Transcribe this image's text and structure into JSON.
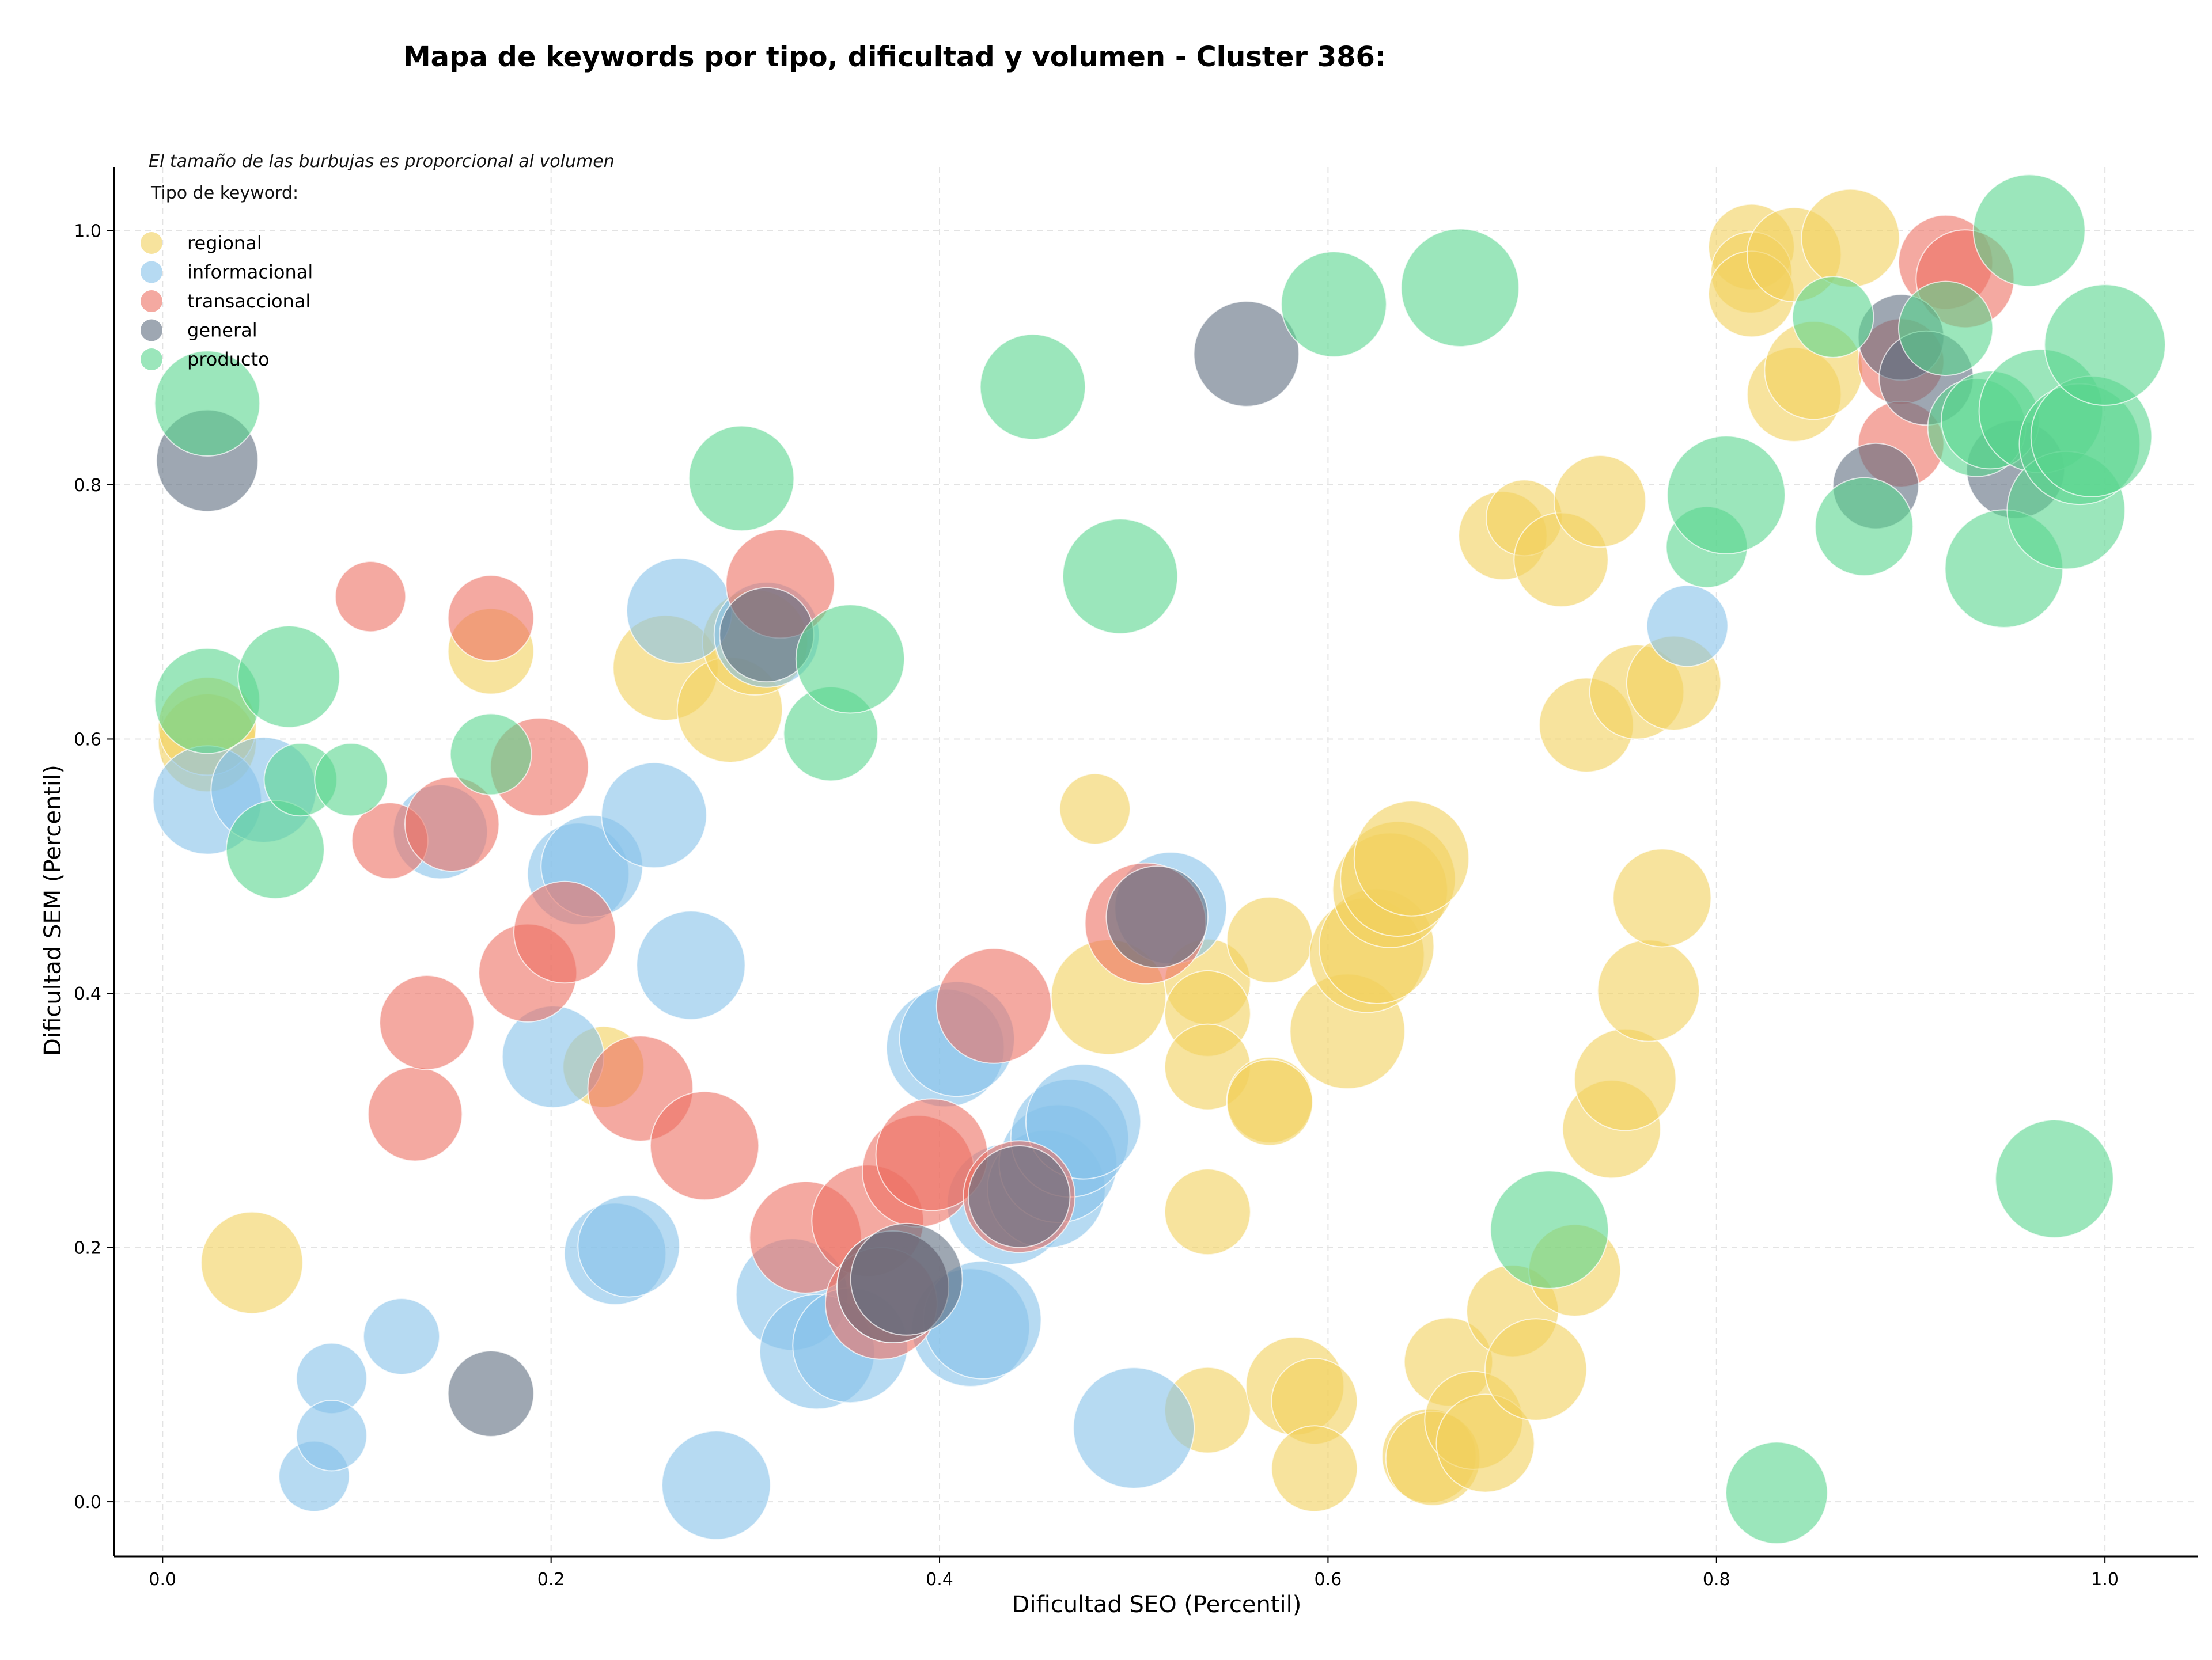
{
  "chart_data": {
    "type": "scatter",
    "title": "Mapa de keywords por tipo, dificultad y volumen - Cluster 386:",
    "subtitle": "El tamaño de las burbujas es proporcional al volumen",
    "xlabel": "Dificultad SEO (Percentil)",
    "ylabel": "Dificultad SEM (Percentil)",
    "xlim": [
      -0.025,
      1.048
    ],
    "ylim": [
      -0.043,
      1.05
    ],
    "xticks": [
      "0.0",
      "0.2",
      "0.4",
      "0.6",
      "0.8",
      "1.0"
    ],
    "yticks": [
      "0.0",
      "0.2",
      "0.4",
      "0.6",
      "0.8",
      "1.0"
    ],
    "grid": true,
    "legend": {
      "title": "Tipo de keyword:",
      "placement": "top-left"
    },
    "series": [
      {
        "name": "regional",
        "color": "#f1d05c",
        "points": [
          {
            "x": 0.023,
            "y": 0.597,
            "s": 0.5
          },
          {
            "x": 0.023,
            "y": 0.61,
            "s": 0.5
          },
          {
            "x": 0.046,
            "y": 0.188,
            "s": 0.55
          },
          {
            "x": 0.169,
            "y": 0.669,
            "s": 0.35
          },
          {
            "x": 0.227,
            "y": 0.342,
            "s": 0.3
          },
          {
            "x": 0.259,
            "y": 0.656,
            "s": 0.6
          },
          {
            "x": 0.292,
            "y": 0.623,
            "s": 0.6
          },
          {
            "x": 0.305,
            "y": 0.676,
            "s": 0.6
          },
          {
            "x": 0.48,
            "y": 0.545,
            "s": 0.2
          },
          {
            "x": 0.487,
            "y": 0.397,
            "s": 0.75
          },
          {
            "x": 0.538,
            "y": 0.409,
            "s": 0.35
          },
          {
            "x": 0.538,
            "y": 0.384,
            "s": 0.35
          },
          {
            "x": 0.538,
            "y": 0.342,
            "s": 0.35
          },
          {
            "x": 0.538,
            "y": 0.228,
            "s": 0.35
          },
          {
            "x": 0.538,
            "y": 0.072,
            "s": 0.35
          },
          {
            "x": 0.57,
            "y": 0.442,
            "s": 0.35
          },
          {
            "x": 0.57,
            "y": 0.316,
            "s": 0.35
          },
          {
            "x": 0.57,
            "y": 0.314,
            "s": 0.35
          },
          {
            "x": 0.583,
            "y": 0.091,
            "s": 0.5
          },
          {
            "x": 0.593,
            "y": 0.079,
            "s": 0.35
          },
          {
            "x": 0.593,
            "y": 0.026,
            "s": 0.35
          },
          {
            "x": 0.61,
            "y": 0.37,
            "s": 0.75
          },
          {
            "x": 0.62,
            "y": 0.43,
            "s": 0.75
          },
          {
            "x": 0.625,
            "y": 0.437,
            "s": 0.75
          },
          {
            "x": 0.632,
            "y": 0.481,
            "s": 0.75
          },
          {
            "x": 0.636,
            "y": 0.49,
            "s": 0.75
          },
          {
            "x": 0.643,
            "y": 0.506,
            "s": 0.75
          },
          {
            "x": 0.652,
            "y": 0.036,
            "s": 0.45
          },
          {
            "x": 0.654,
            "y": 0.034,
            "s": 0.45
          },
          {
            "x": 0.662,
            "y": 0.11,
            "s": 0.38
          },
          {
            "x": 0.675,
            "y": 0.064,
            "s": 0.5
          },
          {
            "x": 0.681,
            "y": 0.046,
            "s": 0.5
          },
          {
            "x": 0.69,
            "y": 0.76,
            "s": 0.38
          },
          {
            "x": 0.695,
            "y": 0.15,
            "s": 0.42
          },
          {
            "x": 0.701,
            "y": 0.774,
            "s": 0.25
          },
          {
            "x": 0.707,
            "y": 0.104,
            "s": 0.55
          },
          {
            "x": 0.72,
            "y": 0.741,
            "s": 0.45
          },
          {
            "x": 0.727,
            "y": 0.182,
            "s": 0.42
          },
          {
            "x": 0.733,
            "y": 0.611,
            "s": 0.45
          },
          {
            "x": 0.74,
            "y": 0.787,
            "s": 0.42
          },
          {
            "x": 0.746,
            "y": 0.293,
            "s": 0.5
          },
          {
            "x": 0.753,
            "y": 0.332,
            "s": 0.55
          },
          {
            "x": 0.759,
            "y": 0.637,
            "s": 0.45
          },
          {
            "x": 0.765,
            "y": 0.402,
            "s": 0.55
          },
          {
            "x": 0.772,
            "y": 0.475,
            "s": 0.5
          },
          {
            "x": 0.778,
            "y": 0.644,
            "s": 0.45
          },
          {
            "x": 0.818,
            "y": 0.987,
            "s": 0.35
          },
          {
            "x": 0.818,
            "y": 0.967,
            "s": 0.3
          },
          {
            "x": 0.818,
            "y": 0.95,
            "s": 0.35
          },
          {
            "x": 0.84,
            "y": 0.981,
            "s": 0.45
          },
          {
            "x": 0.84,
            "y": 0.871,
            "s": 0.45
          },
          {
            "x": 0.85,
            "y": 0.89,
            "s": 0.5
          },
          {
            "x": 0.869,
            "y": 0.994,
            "s": 0.5
          }
        ]
      },
      {
        "name": "informacional",
        "color": "#85c1e9",
        "points": [
          {
            "x": 0.023,
            "y": 0.552,
            "s": 0.65
          },
          {
            "x": 0.052,
            "y": 0.56,
            "s": 0.6
          },
          {
            "x": 0.078,
            "y": 0.02,
            "s": 0.2
          },
          {
            "x": 0.087,
            "y": 0.097,
            "s": 0.2
          },
          {
            "x": 0.087,
            "y": 0.052,
            "s": 0.2
          },
          {
            "x": 0.123,
            "y": 0.13,
            "s": 0.25
          },
          {
            "x": 0.143,
            "y": 0.527,
            "s": 0.45
          },
          {
            "x": 0.201,
            "y": 0.35,
            "s": 0.55
          },
          {
            "x": 0.214,
            "y": 0.494,
            "s": 0.55
          },
          {
            "x": 0.221,
            "y": 0.5,
            "s": 0.55
          },
          {
            "x": 0.233,
            "y": 0.195,
            "s": 0.55
          },
          {
            "x": 0.24,
            "y": 0.201,
            "s": 0.55
          },
          {
            "x": 0.253,
            "y": 0.54,
            "s": 0.6
          },
          {
            "x": 0.266,
            "y": 0.701,
            "s": 0.6
          },
          {
            "x": 0.272,
            "y": 0.422,
            "s": 0.65
          },
          {
            "x": 0.285,
            "y": 0.013,
            "s": 0.65
          },
          {
            "x": 0.311,
            "y": 0.682,
            "s": 0.6
          },
          {
            "x": 0.324,
            "y": 0.163,
            "s": 0.7
          },
          {
            "x": 0.337,
            "y": 0.118,
            "s": 0.75
          },
          {
            "x": 0.354,
            "y": 0.123,
            "s": 0.75
          },
          {
            "x": 0.403,
            "y": 0.357,
            "s": 0.8
          },
          {
            "x": 0.409,
            "y": 0.364,
            "s": 0.75
          },
          {
            "x": 0.416,
            "y": 0.137,
            "s": 0.8
          },
          {
            "x": 0.422,
            "y": 0.143,
            "s": 0.8
          },
          {
            "x": 0.435,
            "y": 0.234,
            "s": 0.85
          },
          {
            "x": 0.455,
            "y": 0.246,
            "s": 0.8
          },
          {
            "x": 0.461,
            "y": 0.266,
            "s": 0.8
          },
          {
            "x": 0.467,
            "y": 0.286,
            "s": 0.8
          },
          {
            "x": 0.474,
            "y": 0.299,
            "s": 0.75
          },
          {
            "x": 0.5,
            "y": 0.058,
            "s": 0.85
          },
          {
            "x": 0.519,
            "y": 0.467,
            "s": 0.7
          },
          {
            "x": 0.785,
            "y": 0.689,
            "s": 0.3
          }
        ]
      },
      {
        "name": "transaccional",
        "color": "#ec7063",
        "points": [
          {
            "x": 0.107,
            "y": 0.712,
            "s": 0.2
          },
          {
            "x": 0.117,
            "y": 0.52,
            "s": 0.25
          },
          {
            "x": 0.13,
            "y": 0.305,
            "s": 0.45
          },
          {
            "x": 0.136,
            "y": 0.377,
            "s": 0.45
          },
          {
            "x": 0.149,
            "y": 0.533,
            "s": 0.45
          },
          {
            "x": 0.169,
            "y": 0.695,
            "s": 0.35
          },
          {
            "x": 0.188,
            "y": 0.416,
            "s": 0.5
          },
          {
            "x": 0.194,
            "y": 0.578,
            "s": 0.5
          },
          {
            "x": 0.207,
            "y": 0.448,
            "s": 0.55
          },
          {
            "x": 0.246,
            "y": 0.325,
            "s": 0.6
          },
          {
            "x": 0.279,
            "y": 0.28,
            "s": 0.65
          },
          {
            "x": 0.318,
            "y": 0.722,
            "s": 0.65
          },
          {
            "x": 0.331,
            "y": 0.208,
            "s": 0.7
          },
          {
            "x": 0.363,
            "y": 0.221,
            "s": 0.7
          },
          {
            "x": 0.37,
            "y": 0.156,
            "s": 0.7
          },
          {
            "x": 0.376,
            "y": 0.169,
            "s": 0.7
          },
          {
            "x": 0.389,
            "y": 0.26,
            "s": 0.7
          },
          {
            "x": 0.396,
            "y": 0.273,
            "s": 0.7
          },
          {
            "x": 0.428,
            "y": 0.39,
            "s": 0.75
          },
          {
            "x": 0.441,
            "y": 0.24,
            "s": 0.7
          },
          {
            "x": 0.506,
            "y": 0.455,
            "s": 0.85
          },
          {
            "x": 0.895,
            "y": 0.897,
            "s": 0.35
          },
          {
            "x": 0.895,
            "y": 0.832,
            "s": 0.35
          },
          {
            "x": 0.918,
            "y": 0.975,
            "s": 0.45
          },
          {
            "x": 0.928,
            "y": 0.962,
            "s": 0.5
          }
        ]
      },
      {
        "name": "general",
        "color": "#5d6d7e",
        "points": [
          {
            "x": 0.023,
            "y": 0.819,
            "s": 0.55
          },
          {
            "x": 0.169,
            "y": 0.085,
            "s": 0.35
          },
          {
            "x": 0.311,
            "y": 0.682,
            "s": 0.45
          },
          {
            "x": 0.376,
            "y": 0.169,
            "s": 0.7
          },
          {
            "x": 0.383,
            "y": 0.175,
            "s": 0.7
          },
          {
            "x": 0.441,
            "y": 0.24,
            "s": 0.55
          },
          {
            "x": 0.512,
            "y": 0.46,
            "s": 0.55
          },
          {
            "x": 0.558,
            "y": 0.903,
            "s": 0.6
          },
          {
            "x": 0.882,
            "y": 0.799,
            "s": 0.35
          },
          {
            "x": 0.895,
            "y": 0.916,
            "s": 0.35
          },
          {
            "x": 0.908,
            "y": 0.884,
            "s": 0.45
          },
          {
            "x": 0.954,
            "y": 0.812,
            "s": 0.5
          }
        ]
      },
      {
        "name": "producto",
        "color": "#58d68d",
        "points": [
          {
            "x": 0.023,
            "y": 0.864,
            "s": 0.6
          },
          {
            "x": 0.023,
            "y": 0.63,
            "s": 0.6
          },
          {
            "x": 0.058,
            "y": 0.513,
            "s": 0.5
          },
          {
            "x": 0.065,
            "y": 0.649,
            "s": 0.55
          },
          {
            "x": 0.071,
            "y": 0.568,
            "s": 0.22
          },
          {
            "x": 0.097,
            "y": 0.568,
            "s": 0.22
          },
          {
            "x": 0.169,
            "y": 0.588,
            "s": 0.3
          },
          {
            "x": 0.298,
            "y": 0.805,
            "s": 0.6
          },
          {
            "x": 0.344,
            "y": 0.604,
            "s": 0.45
          },
          {
            "x": 0.354,
            "y": 0.663,
            "s": 0.65
          },
          {
            "x": 0.448,
            "y": 0.877,
            "s": 0.6
          },
          {
            "x": 0.493,
            "y": 0.728,
            "s": 0.75
          },
          {
            "x": 0.603,
            "y": 0.942,
            "s": 0.6
          },
          {
            "x": 0.668,
            "y": 0.955,
            "s": 0.8
          },
          {
            "x": 0.714,
            "y": 0.214,
            "s": 0.8
          },
          {
            "x": 0.795,
            "y": 0.751,
            "s": 0.3
          },
          {
            "x": 0.805,
            "y": 0.792,
            "s": 0.8
          },
          {
            "x": 0.831,
            "y": 0.007,
            "s": 0.55
          },
          {
            "x": 0.86,
            "y": 0.932,
            "s": 0.3
          },
          {
            "x": 0.876,
            "y": 0.767,
            "s": 0.5
          },
          {
            "x": 0.918,
            "y": 0.923,
            "s": 0.45
          },
          {
            "x": 0.934,
            "y": 0.845,
            "s": 0.5
          },
          {
            "x": 0.941,
            "y": 0.851,
            "s": 0.5
          },
          {
            "x": 0.948,
            "y": 0.734,
            "s": 0.8
          },
          {
            "x": 0.961,
            "y": 1.0,
            "s": 0.7
          },
          {
            "x": 0.967,
            "y": 0.858,
            "s": 0.9
          },
          {
            "x": 0.974,
            "y": 0.254,
            "s": 0.8
          },
          {
            "x": 0.98,
            "y": 0.78,
            "s": 0.8
          },
          {
            "x": 0.987,
            "y": 0.832,
            "s": 0.85
          },
          {
            "x": 0.993,
            "y": 0.838,
            "s": 0.85
          },
          {
            "x": 1.0,
            "y": 0.91,
            "s": 0.85
          }
        ]
      }
    ]
  }
}
